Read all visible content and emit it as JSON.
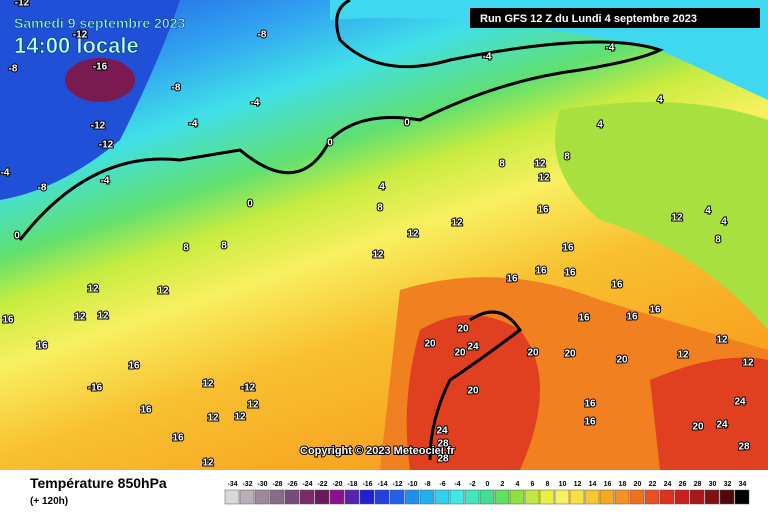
{
  "header": {
    "date": "Samedi 9 septembre 2023",
    "time": "14:00 locale",
    "run": "Run GFS 12 Z du Lundi 4 septembre 2023"
  },
  "footer": {
    "title": "Température 850hPa",
    "subtitle": "(+ 120h)",
    "copyright": "Copyright © 2023 Meteociel.fr"
  },
  "scale": {
    "labels": [
      "-34",
      "-32",
      "-30",
      "-28",
      "-26",
      "-24",
      "-22",
      "-20",
      "-18",
      "-16",
      "-14",
      "-12",
      "-10",
      "-8",
      "-6",
      "-4",
      "-2",
      "0",
      "2",
      "4",
      "6",
      "8",
      "10",
      "12",
      "14",
      "16",
      "18",
      "20",
      "22",
      "24",
      "26",
      "28",
      "30",
      "32",
      "34"
    ],
    "colors": [
      "#d9d9d9",
      "#b8b0b8",
      "#9c8a9c",
      "#866c86",
      "#7a4a7a",
      "#7a2a6a",
      "#6a1a5a",
      "#8a1090",
      "#5a20b0",
      "#2020d0",
      "#2040e0",
      "#2060f0",
      "#2090f0",
      "#20b0f0",
      "#30d0f0",
      "#40e8e8",
      "#40e8c0",
      "#40e090",
      "#60e060",
      "#90e040",
      "#c0e840",
      "#e8f040",
      "#f8f060",
      "#f8e040",
      "#f8c830",
      "#f8a820",
      "#f89020",
      "#f07020",
      "#e85020",
      "#e03020",
      "#c82020",
      "#a81818",
      "#801010",
      "#500808",
      "#000000"
    ]
  },
  "map_labels": [
    "-12",
    "-8",
    "-12",
    "-8",
    "-16",
    "-8",
    "-4",
    "-4",
    "-12",
    "-12",
    "-4",
    "-4",
    "-8",
    "0",
    "0",
    "0",
    "0",
    "-4",
    "-4",
    "4",
    "4",
    "4",
    "8",
    "8",
    "12",
    "12",
    "8",
    "16",
    "12",
    "12",
    "12",
    "8",
    "8",
    "12",
    "12",
    "12",
    "12",
    "16",
    "16",
    "16",
    "-16",
    "12",
    "-12",
    "12",
    "12",
    "12",
    "16",
    "16",
    "12",
    "20",
    "20",
    "24",
    "20",
    "20",
    "20",
    "20",
    "16",
    "16",
    "20",
    "24",
    "28",
    "28",
    "24",
    "24",
    "20",
    "28",
    "12",
    "12",
    "12",
    "12",
    "4",
    "4",
    "8",
    "16",
    "16",
    "16",
    "16",
    "16",
    "16",
    "16",
    "16"
  ]
}
